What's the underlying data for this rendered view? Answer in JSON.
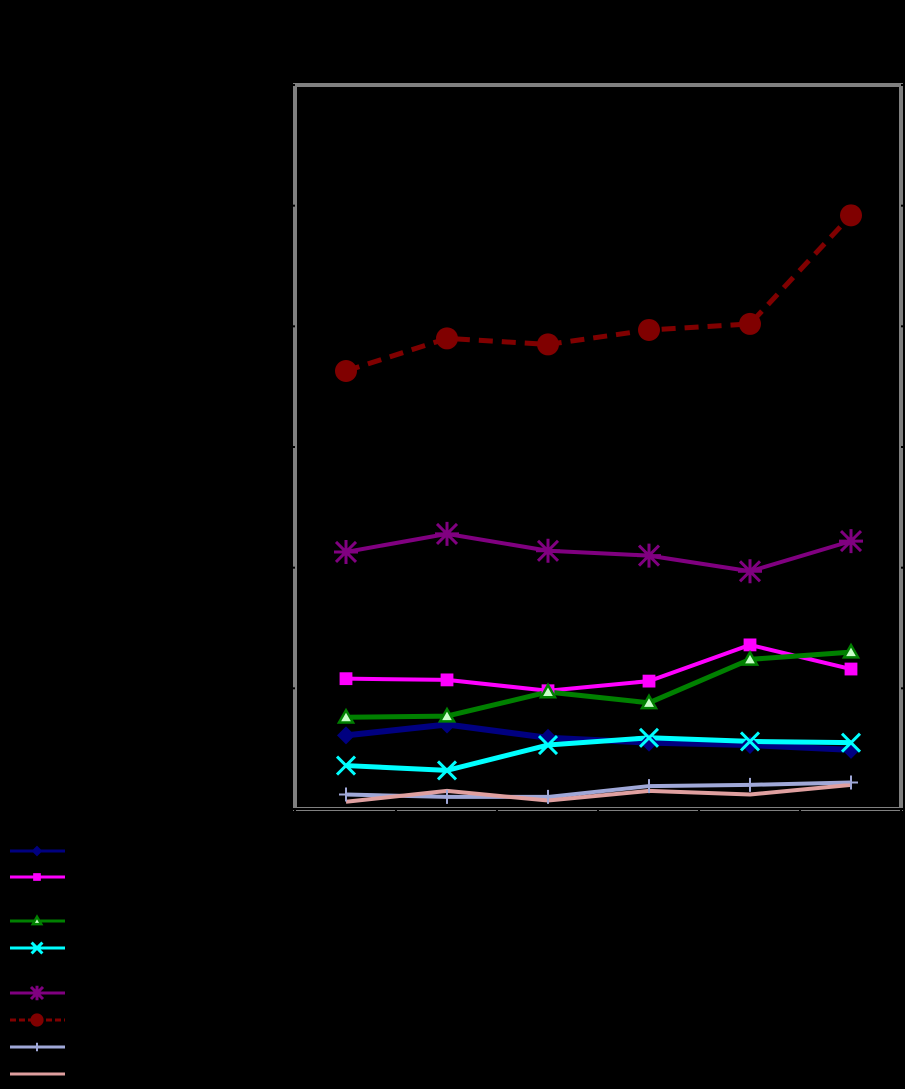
{
  "chart_data": {
    "type": "line",
    "title": "",
    "xlabel": "",
    "ylabel": "",
    "background": "#000000",
    "frame_color": "#808080",
    "grid": false,
    "legend_position": "bottom-left",
    "x": [
      1,
      2,
      3,
      4,
      5,
      6
    ],
    "ylim": [
      0,
      6
    ],
    "yticks": [
      0,
      1,
      2,
      3,
      4,
      5,
      6
    ],
    "series": [
      {
        "name": "",
        "color": "#000080",
        "marker": "diamond",
        "dashed": false,
        "values": [
          0.61,
          0.7,
          0.59,
          0.55,
          0.53,
          0.49
        ]
      },
      {
        "name": "",
        "color": "#FF00FF",
        "marker": "square",
        "dashed": false,
        "values": [
          1.08,
          1.07,
          0.98,
          1.06,
          1.36,
          1.16
        ]
      },
      {
        "name": "",
        "color": "#008000",
        "marker": "triangle",
        "dashed": false,
        "values": [
          0.76,
          0.77,
          0.97,
          0.88,
          1.24,
          1.3
        ]
      },
      {
        "name": "",
        "color": "#00FFFF",
        "marker": "x",
        "dashed": false,
        "values": [
          0.36,
          0.32,
          0.53,
          0.59,
          0.56,
          0.55
        ]
      },
      {
        "name": "",
        "color": "#800080",
        "marker": "asterisk",
        "dashed": false,
        "values": [
          2.13,
          2.28,
          2.14,
          2.1,
          1.97,
          2.22
        ]
      },
      {
        "name": "",
        "color": "#800000",
        "marker": "circle",
        "dashed": true,
        "values": [
          3.63,
          3.9,
          3.85,
          3.97,
          4.02,
          4.92
        ]
      },
      {
        "name": "",
        "color": "#A0A8D8",
        "marker": "plus",
        "dashed": false,
        "values": [
          0.12,
          0.1,
          0.1,
          0.19,
          0.2,
          0.22
        ]
      },
      {
        "name": "",
        "color": "#E0A0A0",
        "marker": "none",
        "dashed": false,
        "values": [
          0.06,
          0.15,
          0.07,
          0.15,
          0.12,
          0.2
        ]
      }
    ]
  }
}
